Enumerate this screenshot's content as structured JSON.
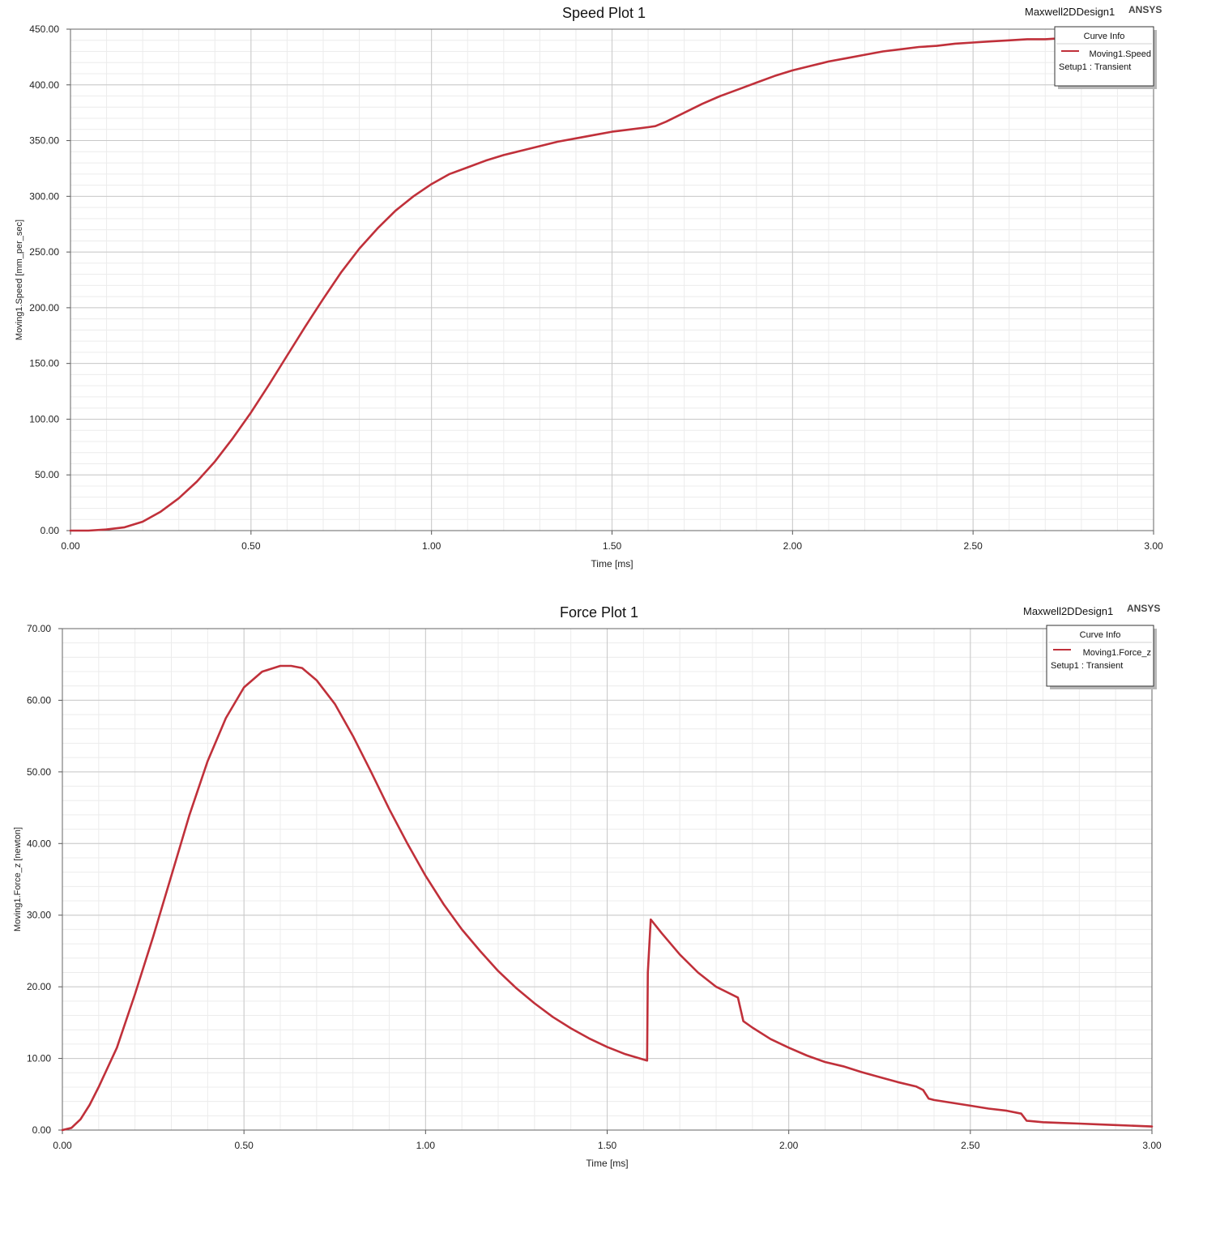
{
  "chart_data": [
    {
      "type": "line",
      "title": "Speed Plot 1",
      "design_name": "Maxwell2DDesign1",
      "brand": "ANSYS",
      "xlabel": "Time [ms]",
      "ylabel": "Moving1.Speed [mm_per_sec]",
      "xlim": [
        0,
        3
      ],
      "ylim": [
        0,
        450
      ],
      "x_ticks": [
        "0.00",
        "0.50",
        "1.00",
        "1.50",
        "2.00",
        "2.50",
        "3.00"
      ],
      "y_ticks": [
        "0.00",
        "50.00",
        "100.00",
        "150.00",
        "200.00",
        "250.00",
        "300.00",
        "350.00",
        "400.00",
        "450.00"
      ],
      "grid": true,
      "legend": {
        "title": "Curve Info",
        "position": "top-right",
        "entries": [
          {
            "name": "Moving1.Speed",
            "sub": "Setup1 : Transient"
          }
        ]
      },
      "series": [
        {
          "name": "Moving1.Speed",
          "color": "#c0303a",
          "x": [
            0,
            0.05,
            0.1,
            0.15,
            0.2,
            0.25,
            0.3,
            0.35,
            0.4,
            0.45,
            0.5,
            0.55,
            0.6,
            0.65,
            0.7,
            0.75,
            0.8,
            0.85,
            0.9,
            0.95,
            1.0,
            1.05,
            1.1,
            1.15,
            1.2,
            1.25,
            1.3,
            1.35,
            1.4,
            1.45,
            1.5,
            1.55,
            1.6,
            1.62,
            1.65,
            1.7,
            1.75,
            1.8,
            1.85,
            1.9,
            1.95,
            2.0,
            2.05,
            2.1,
            2.15,
            2.2,
            2.25,
            2.3,
            2.35,
            2.4,
            2.45,
            2.5,
            2.55,
            2.6,
            2.65,
            2.7,
            2.75,
            2.8,
            2.85,
            2.9,
            2.95,
            3.0
          ],
          "y": [
            0,
            0,
            1,
            3,
            8,
            17,
            29,
            44,
            62,
            83,
            106,
            131,
            157,
            183,
            208,
            232,
            253,
            271,
            287,
            300,
            311,
            320,
            326,
            332,
            337,
            341,
            345,
            349,
            352,
            355,
            358,
            360,
            362,
            363,
            367,
            375,
            383,
            390,
            396,
            402,
            408,
            413,
            417,
            421,
            424,
            427,
            430,
            432,
            434,
            435,
            437,
            438,
            439,
            440,
            441,
            441,
            442,
            442,
            443,
            443,
            443,
            443
          ]
        }
      ]
    },
    {
      "type": "line",
      "title": "Force Plot 1",
      "design_name": "Maxwell2DDesign1",
      "brand": "ANSYS",
      "xlabel": "Time [ms]",
      "ylabel": "Moving1.Force_z [newton]",
      "xlim": [
        0,
        3
      ],
      "ylim": [
        0,
        70
      ],
      "x_ticks": [
        "0.00",
        "0.50",
        "1.00",
        "1.50",
        "2.00",
        "2.50",
        "3.00"
      ],
      "y_ticks": [
        "0.00",
        "10.00",
        "20.00",
        "30.00",
        "40.00",
        "50.00",
        "60.00",
        "70.00"
      ],
      "grid": true,
      "legend": {
        "title": "Curve Info",
        "position": "top-right",
        "entries": [
          {
            "name": "Moving1.Force_z",
            "sub": "Setup1 : Transient"
          }
        ]
      },
      "series": [
        {
          "name": "Moving1.Force_z",
          "color": "#c0303a",
          "x": [
            0,
            0.025,
            0.05,
            0.075,
            0.1,
            0.15,
            0.2,
            0.25,
            0.3,
            0.35,
            0.4,
            0.45,
            0.5,
            0.55,
            0.6,
            0.63,
            0.66,
            0.7,
            0.75,
            0.8,
            0.85,
            0.9,
            0.95,
            1.0,
            1.05,
            1.1,
            1.15,
            1.2,
            1.25,
            1.3,
            1.35,
            1.4,
            1.45,
            1.5,
            1.55,
            1.61,
            1.612,
            1.62,
            1.65,
            1.7,
            1.75,
            1.8,
            1.86,
            1.875,
            1.9,
            1.95,
            2.0,
            2.05,
            2.1,
            2.15,
            2.2,
            2.25,
            2.3,
            2.35,
            2.37,
            2.385,
            2.4,
            2.45,
            2.5,
            2.55,
            2.6,
            2.64,
            2.655,
            2.7,
            2.75,
            2.8,
            2.85,
            2.9,
            2.95,
            3.0
          ],
          "y": [
            0,
            0.3,
            1.5,
            3.5,
            6,
            11.5,
            19,
            27,
            35.5,
            44,
            51.5,
            57.5,
            61.8,
            64,
            64.8,
            64.8,
            64.5,
            62.8,
            59.5,
            55,
            50,
            44.8,
            40,
            35.5,
            31.5,
            28,
            25,
            22.2,
            19.8,
            17.7,
            15.8,
            14.2,
            12.8,
            11.6,
            10.6,
            9.7,
            22,
            29.4,
            27.5,
            24.5,
            22,
            20,
            18.5,
            15.2,
            14.3,
            12.7,
            11.5,
            10.4,
            9.5,
            8.9,
            8.1,
            7.4,
            6.7,
            6.1,
            5.6,
            4.4,
            4.2,
            3.8,
            3.4,
            3.0,
            2.7,
            2.3,
            1.3,
            1.1,
            1.0,
            0.9,
            0.8,
            0.7,
            0.6,
            0.5
          ]
        }
      ]
    }
  ]
}
